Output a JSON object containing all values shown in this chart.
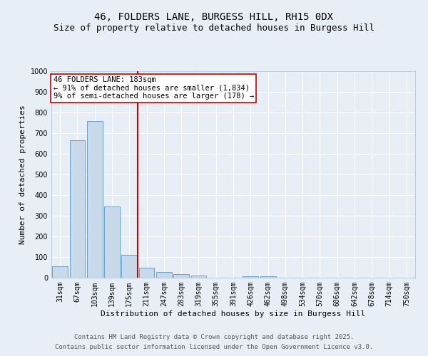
{
  "title": "46, FOLDERS LANE, BURGESS HILL, RH15 0DX",
  "subtitle": "Size of property relative to detached houses in Burgess Hill",
  "xlabel": "Distribution of detached houses by size in Burgess Hill",
  "ylabel": "Number of detached properties",
  "categories": [
    "31sqm",
    "67sqm",
    "103sqm",
    "139sqm",
    "175sqm",
    "211sqm",
    "247sqm",
    "283sqm",
    "319sqm",
    "355sqm",
    "391sqm",
    "426sqm",
    "462sqm",
    "498sqm",
    "534sqm",
    "570sqm",
    "606sqm",
    "642sqm",
    "678sqm",
    "714sqm",
    "750sqm"
  ],
  "values": [
    55,
    665,
    760,
    345,
    110,
    50,
    27,
    18,
    10,
    0,
    0,
    8,
    8,
    0,
    0,
    0,
    0,
    0,
    0,
    0,
    0
  ],
  "bar_color": "#c8d9ea",
  "bar_edge_color": "#6aa0c8",
  "ref_line_x": 4.5,
  "ref_line_color": "#cc0000",
  "annotation_text": "46 FOLDERS LANE: 183sqm\n← 91% of detached houses are smaller (1,834)\n9% of semi-detached houses are larger (178) →",
  "annotation_box_color": "white",
  "annotation_box_edge_color": "#cc0000",
  "ylim": [
    0,
    1000
  ],
  "yticks": [
    0,
    100,
    200,
    300,
    400,
    500,
    600,
    700,
    800,
    900,
    1000
  ],
  "footer_line1": "Contains HM Land Registry data © Crown copyright and database right 2025.",
  "footer_line2": "Contains public sector information licensed under the Open Government Licence v3.0.",
  "bg_color": "#e8eef5",
  "plot_bg_color": "#e8eef5",
  "title_fontsize": 10,
  "subtitle_fontsize": 9,
  "axis_label_fontsize": 8,
  "tick_fontsize": 7,
  "annotation_fontsize": 7.5,
  "footer_fontsize": 6.5
}
